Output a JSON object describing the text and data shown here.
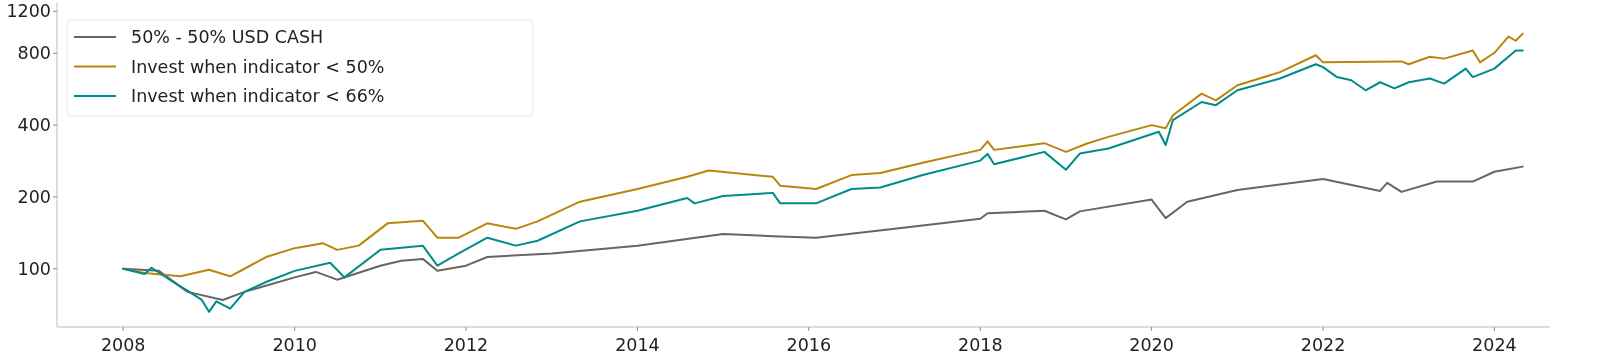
{
  "chart_data": {
    "type": "line",
    "log": "y",
    "legend": "top left",
    "line_style": "solid",
    "xlim": [
      "2007-03-25",
      "2024-08-25"
    ],
    "xticks": [
      {
        "value": "2008",
        "label": "2008"
      },
      {
        "value": "2010",
        "label": "2010"
      },
      {
        "value": "2012",
        "label": "2012"
      },
      {
        "value": "2014",
        "label": "2014"
      },
      {
        "value": "2016",
        "label": "2016"
      },
      {
        "value": "2018",
        "label": "2018"
      },
      {
        "value": "2020",
        "label": "2020"
      },
      {
        "value": "2022",
        "label": "2022"
      },
      {
        "value": "2024",
        "label": "2024"
      }
    ],
    "ylim": [
      57,
      1300
    ],
    "yticks": [
      100,
      200,
      400,
      800,
      1200
    ],
    "series": [
      {
        "name": "50% - 50% USD CASH",
        "color": "#666666",
        "x": [
          "2008-01",
          "2008-06",
          "2008-10",
          "2009-03",
          "2009-06",
          "2010-01",
          "2010-04",
          "2010-07",
          "2011-01",
          "2011-04",
          "2011-07",
          "2011-09",
          "2012-01",
          "2012-04",
          "2013-01",
          "2014-01",
          "2015-01",
          "2015-08",
          "2016-02",
          "2017-01",
          "2018-01",
          "2018-02",
          "2018-10",
          "2019-01",
          "2019-03",
          "2020-01",
          "2020-03",
          "2020-06",
          "2021-01",
          "2022-01",
          "2022-09",
          "2022-10",
          "2022-12",
          "2023-05",
          "2023-10",
          "2024-01",
          "2024-05"
        ],
        "values": [
          100,
          98,
          80,
          74,
          80,
          92,
          97,
          90,
          103,
          108,
          110,
          98,
          103,
          112,
          116,
          125,
          140,
          137,
          135,
          147,
          162,
          171,
          175,
          161,
          174,
          195,
          163,
          191,
          214,
          238,
          212,
          229,
          210,
          232,
          232,
          255,
          268
        ]
      },
      {
        "name": "Invest when indicator < 50%",
        "color": "#b8860b",
        "x": [
          "2008-01",
          "2008-04",
          "2008-09",
          "2009-01",
          "2009-04",
          "2009-06",
          "2009-09",
          "2010-01",
          "2010-05",
          "2010-07",
          "2010-10",
          "2011-02",
          "2011-07",
          "2011-09",
          "2011-12",
          "2012-04",
          "2012-08",
          "2012-11",
          "2013-05",
          "2014-01",
          "2014-08",
          "2014-11",
          "2015-08",
          "2015-09",
          "2016-02",
          "2016-07",
          "2016-11",
          "2017-05",
          "2018-01",
          "2018-02",
          "2018-03",
          "2018-10",
          "2019-01",
          "2019-04",
          "2019-07",
          "2020-01",
          "2020-03",
          "2020-04",
          "2020-08",
          "2020-10",
          "2021-01",
          "2021-07",
          "2021-12",
          "2022-01",
          "2022-12",
          "2023-01",
          "2023-04",
          "2023-06",
          "2023-10",
          "2023-11",
          "2024-01",
          "2024-03",
          "2024-04",
          "2024-05"
        ],
        "values": [
          100,
          96,
          93,
          99,
          93,
          100,
          112,
          122,
          128,
          120,
          125,
          155,
          159,
          135,
          135,
          155,
          147,
          158,
          191,
          216,
          243,
          258,
          243,
          223,
          216,
          247,
          252,
          278,
          315,
          342,
          315,
          336,
          309,
          335,
          357,
          400,
          388,
          440,
          542,
          508,
          588,
          667,
          785,
          733,
          740,
          720,
          774,
          760,
          822,
          733,
          804,
          940,
          903,
          967
        ]
      },
      {
        "name": "Invest when indicator < 66%",
        "color": "#008b8b",
        "x": [
          "2008-01",
          "2008-04",
          "2008-05",
          "2008-08",
          "2008-10",
          "2008-12",
          "2009-01",
          "2009-02",
          "2009-04",
          "2009-06",
          "2009-09",
          "2010-01",
          "2010-06",
          "2010-08",
          "2011-01",
          "2011-07",
          "2011-09",
          "2011-12",
          "2012-04",
          "2012-08",
          "2012-11",
          "2013-05",
          "2014-01",
          "2014-08",
          "2014-09",
          "2015-01",
          "2015-08",
          "2015-09",
          "2016-02",
          "2016-07",
          "2016-11",
          "2017-05",
          "2018-01",
          "2018-02",
          "2018-03",
          "2018-10",
          "2019-01",
          "2019-03",
          "2019-07",
          "2020-02",
          "2020-03",
          "2020-04",
          "2020-08",
          "2020-10",
          "2021-01",
          "2021-07",
          "2021-12",
          "2022-01",
          "2022-03",
          "2022-05",
          "2022-07",
          "2022-09",
          "2022-11",
          "2023-01",
          "2023-04",
          "2023-06",
          "2023-09",
          "2023-10",
          "2024-01",
          "2024-04",
          "2024-05"
        ],
        "values": [
          100,
          95,
          101,
          88,
          81,
          74,
          66,
          73,
          68,
          80,
          88,
          98,
          106,
          92,
          120,
          125,
          103,
          116,
          135,
          125,
          131,
          158,
          175,
          198,
          188,
          202,
          208,
          188,
          188,
          216,
          219,
          247,
          284,
          303,
          274,
          309,
          260,
          304,
          319,
          375,
          330,
          420,
          500,
          485,
          560,
          627,
          720,
          700,
          636,
          617,
          560,
          605,
          570,
          605,
          627,
          597,
          690,
          636,
          690,
          822,
          822
        ]
      }
    ]
  }
}
